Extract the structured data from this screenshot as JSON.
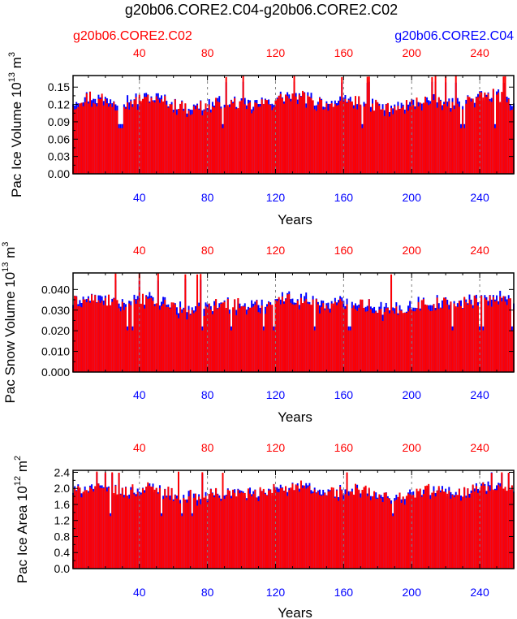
{
  "figure": {
    "title": "g20b06.CORE2.C04-g20b06.CORE2.C02",
    "left_label": "g20b06.CORE2.C02",
    "right_label": "g20b06.CORE2.C04"
  },
  "colors": {
    "series_a": "#ff0000",
    "series_b": "#0000ff",
    "axis": "#000000",
    "gridline": "#808080"
  },
  "chart_data": [
    {
      "type": "bar",
      "title": "",
      "xlabel": "Years",
      "ylabel": "Pac Ice Volume 10",
      "ylabel_exponent": "13",
      "ylabel_unit": "m",
      "ylabel_unit_exponent": "3",
      "xlim": [
        1,
        260
      ],
      "ylim": [
        0,
        0.17
      ],
      "xticks": [
        40,
        80,
        120,
        160,
        200,
        240
      ],
      "xtick_labels": [
        "40",
        "80",
        "120",
        "160",
        "200",
        "240"
      ],
      "yticks": [
        0,
        0.03,
        0.06,
        0.09,
        0.12,
        0.15
      ],
      "ytick_labels": [
        "0.00",
        "0.03",
        "0.06",
        "0.09",
        "0.12",
        "0.15"
      ],
      "vlines": [
        40,
        80,
        120,
        160,
        200,
        240
      ],
      "series": [
        {
          "name": "g20b06.CORE2.C04",
          "color": "#0000ff",
          "base": 0.125,
          "amp": 0.013,
          "peak": 0.16
        },
        {
          "name": "g20b06.CORE2.C02",
          "color": "#ff0000",
          "base": 0.121,
          "amp": 0.014,
          "peak": 0.17
        }
      ]
    },
    {
      "type": "bar",
      "title": "",
      "xlabel": "Years",
      "ylabel": "Pac Snow Volume 10",
      "ylabel_exponent": "13",
      "ylabel_unit": "m",
      "ylabel_unit_exponent": "3",
      "xlim": [
        1,
        260
      ],
      "ylim": [
        0,
        0.048
      ],
      "xticks": [
        40,
        80,
        120,
        160,
        200,
        240
      ],
      "xtick_labels": [
        "40",
        "80",
        "120",
        "160",
        "200",
        "240"
      ],
      "yticks": [
        0,
        0.01,
        0.02,
        0.03,
        0.04
      ],
      "ytick_labels": [
        "0.000",
        "0.010",
        "0.020",
        "0.030",
        "0.040"
      ],
      "vlines": [
        40,
        80,
        120,
        160,
        200,
        240
      ],
      "series": [
        {
          "name": "g20b06.CORE2.C04",
          "color": "#0000ff",
          "base": 0.0335,
          "amp": 0.0038,
          "peak": 0.045
        },
        {
          "name": "g20b06.CORE2.C02",
          "color": "#ff0000",
          "base": 0.0322,
          "amp": 0.004,
          "peak": 0.048
        }
      ]
    },
    {
      "type": "bar",
      "title": "",
      "xlabel": "Years",
      "ylabel": "Pac Ice Area 10",
      "ylabel_exponent": "12",
      "ylabel_unit": "m",
      "ylabel_unit_exponent": "2",
      "xlim": [
        1,
        260
      ],
      "ylim": [
        0,
        2.45
      ],
      "xticks": [
        40,
        80,
        120,
        160,
        200,
        240
      ],
      "xtick_labels": [
        "40",
        "80",
        "120",
        "160",
        "200",
        "240"
      ],
      "yticks": [
        0,
        0.4,
        0.8,
        1.2,
        1.6,
        2.0,
        2.4
      ],
      "ytick_labels": [
        "0.0",
        "0.4",
        "0.8",
        "1.2",
        "1.6",
        "2.0",
        "2.4"
      ],
      "vlines": [
        40,
        80,
        120,
        160,
        200,
        240
      ],
      "series": [
        {
          "name": "g20b06.CORE2.C04",
          "color": "#0000ff",
          "base": 1.92,
          "amp": 0.18,
          "peak": 2.4
        },
        {
          "name": "g20b06.CORE2.C02",
          "color": "#ff0000",
          "base": 1.88,
          "amp": 0.19,
          "peak": 2.42
        }
      ]
    }
  ]
}
